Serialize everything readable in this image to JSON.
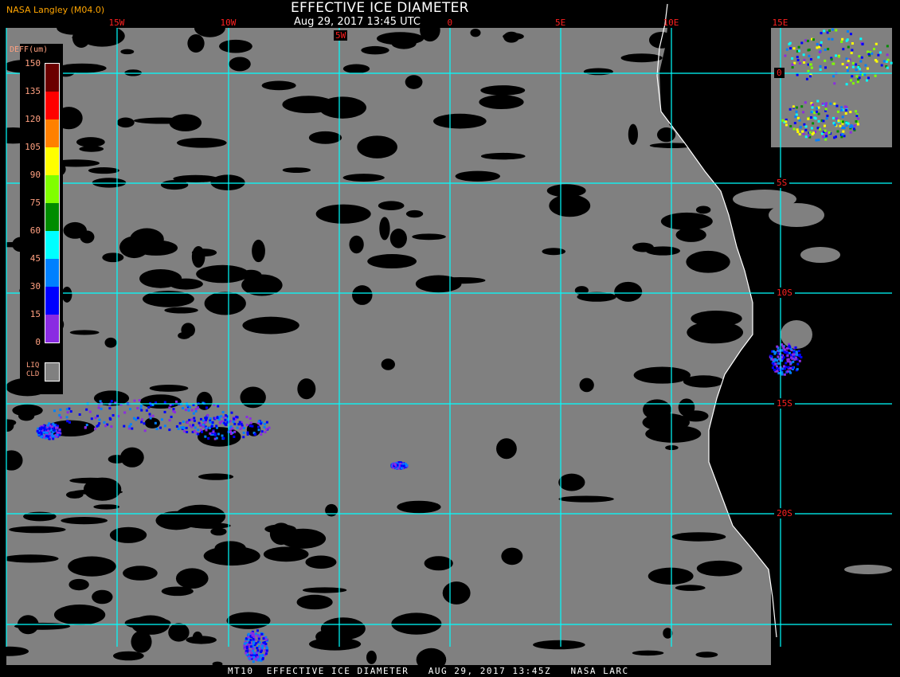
{
  "header": {
    "title": "EFFECTIVE ICE DIAMETER",
    "subtitle": "Aug 29, 2017 13:45 UTC",
    "agency": "NASA Langley (M04.0)"
  },
  "grid": {
    "longitude_labels": [
      "15W",
      "10W",
      "5W",
      "0",
      "5E",
      "10E",
      "15E"
    ],
    "latitude_labels": [
      "0",
      "5S",
      "10S",
      "15S",
      "20S"
    ],
    "line_color": "#00ffff",
    "label_color": "#ff2020"
  },
  "legend": {
    "title": "DEFF(um)",
    "ticks": [
      "150",
      "135",
      "120",
      "105",
      "90",
      "75",
      "60",
      "45",
      "30",
      "15",
      "0"
    ],
    "colors": [
      "#6b0000",
      "#ff0000",
      "#ff8000",
      "#ffff00",
      "#80ff00",
      "#008c00",
      "#00ffff",
      "#0080ff",
      "#0000ff",
      "#8a2be2"
    ],
    "liquid_cloud_label_1": "LIQ",
    "liquid_cloud_label_2": "CLD",
    "liquid_cloud_color": "#808080"
  },
  "footer": "MT10  EFFECTIVE ICE DIAMETER   AUG 29, 2017 13:45Z   NASA LARC",
  "colors": {
    "background": "#000000",
    "cloud_gray": "#808080",
    "coastline": "#ffffff"
  }
}
